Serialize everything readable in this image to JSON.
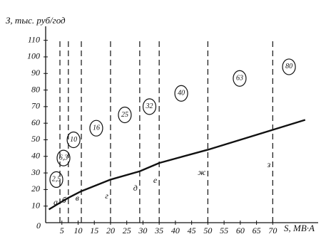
{
  "chart_data": {
    "type": "line",
    "y_label": "З, тыс. руб/год",
    "x_label": "S, МВ·А",
    "origin_label": "0",
    "xlim": [
      0,
      84
    ],
    "ylim": [
      0,
      115
    ],
    "xticks": [
      5,
      10,
      15,
      20,
      25,
      30,
      35,
      40,
      45,
      50,
      55,
      60,
      65,
      70
    ],
    "yticks": [
      10,
      20,
      30,
      40,
      50,
      60,
      70,
      80,
      90,
      100,
      110
    ],
    "series": [
      {
        "color": "#111111",
        "x": [
          1,
          4.4,
          7,
          11,
          20,
          29,
          35,
          50,
          70,
          80
        ],
        "values": [
          8,
          12,
          15,
          19,
          26,
          31,
          36,
          44,
          56,
          62
        ]
      }
    ],
    "boundaries": [
      {
        "label": "а",
        "x": 4.4
      },
      {
        "label": "б",
        "x": 7
      },
      {
        "label": "в",
        "x": 11
      },
      {
        "label": "г",
        "x": 20
      },
      {
        "label": "д",
        "x": 29
      },
      {
        "label": "е",
        "x": 35
      },
      {
        "label": "ж",
        "x": 50
      },
      {
        "label": "з",
        "x": 70
      }
    ],
    "annotations": [
      {
        "text": "2,5",
        "x": 3.3,
        "y": 26
      },
      {
        "text": "6,3",
        "x": 5.5,
        "y": 39
      },
      {
        "text": "10",
        "x": 8.6,
        "y": 50
      },
      {
        "text": "16",
        "x": 15.6,
        "y": 57
      },
      {
        "text": "25",
        "x": 24.4,
        "y": 65
      },
      {
        "text": "32",
        "x": 32,
        "y": 70
      },
      {
        "text": "40",
        "x": 41.8,
        "y": 78
      },
      {
        "text": "63",
        "x": 59.8,
        "y": 87
      },
      {
        "text": "80",
        "x": 75,
        "y": 94
      }
    ]
  }
}
